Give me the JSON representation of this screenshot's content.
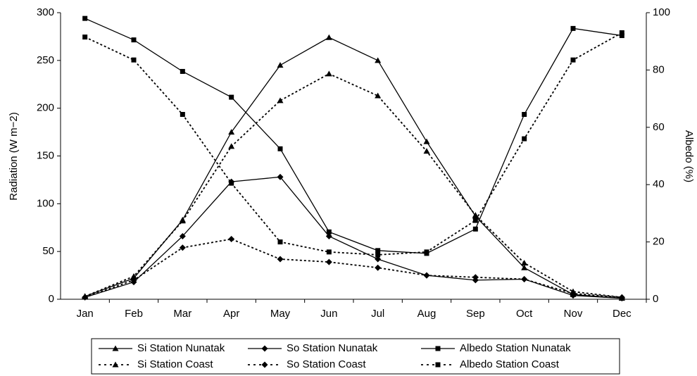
{
  "chart_data": {
    "type": "line",
    "y_label": "Radiation (W m−2)",
    "y2_label": "Albedo (%)",
    "categories": [
      "Jan",
      "Feb",
      "Mar",
      "Apr",
      "May",
      "Jun",
      "Jul",
      "Aug",
      "Sep",
      "Oct",
      "Nov",
      "Dec"
    ],
    "series": [
      {
        "name": "Si Station Nunatak",
        "color": "#000000",
        "marker": "triangle",
        "dash": "solid",
        "values": [
          3,
          22,
          83,
          175,
          245,
          274,
          250,
          165,
          87,
          33,
          5,
          1
        ]
      },
      {
        "name": "So Station Nunatak",
        "color": "#000000",
        "marker": "diamond",
        "dash": "solid",
        "values": [
          2,
          18,
          66,
          123,
          128,
          66,
          42,
          25,
          20,
          21,
          4,
          1
        ]
      },
      {
        "name": "Albedo Station Nunatak",
        "color": "#000000",
        "marker": "square",
        "dash": "solid",
        "axis": "y2",
        "values": [
          98,
          90.5,
          79.5,
          70.5,
          52.5,
          23.5,
          17,
          16,
          24.5,
          64.5,
          94.5,
          92
        ]
      },
      {
        "name": "Si Station Coast",
        "color": "#000000",
        "marker": "triangle",
        "dash": "dashed",
        "values": [
          3,
          24,
          82,
          160,
          208,
          236,
          213,
          155,
          88,
          38,
          8,
          2
        ]
      },
      {
        "name": "So Station Coast",
        "color": "#000000",
        "marker": "diamond",
        "dash": "dashed",
        "values": [
          2,
          20,
          54,
          63,
          42,
          39,
          33,
          25,
          23,
          21,
          6,
          2
        ]
      },
      {
        "name": "Albedo Station Coast",
        "color": "#000000",
        "marker": "square",
        "dash": "dashed",
        "axis": "y2",
        "values": [
          91.5,
          83.5,
          64.5,
          40.5,
          20,
          16.5,
          15.5,
          16.5,
          27.5,
          56,
          83.5,
          93
        ]
      }
    ],
    "ylim": [
      0,
      300
    ],
    "yticks": [
      0,
      50,
      100,
      150,
      200,
      250,
      300
    ],
    "y2lim": [
      0,
      100
    ],
    "y2ticks": [
      0,
      20,
      40,
      60,
      80,
      100
    ],
    "grid": false,
    "legend": "bottom"
  }
}
